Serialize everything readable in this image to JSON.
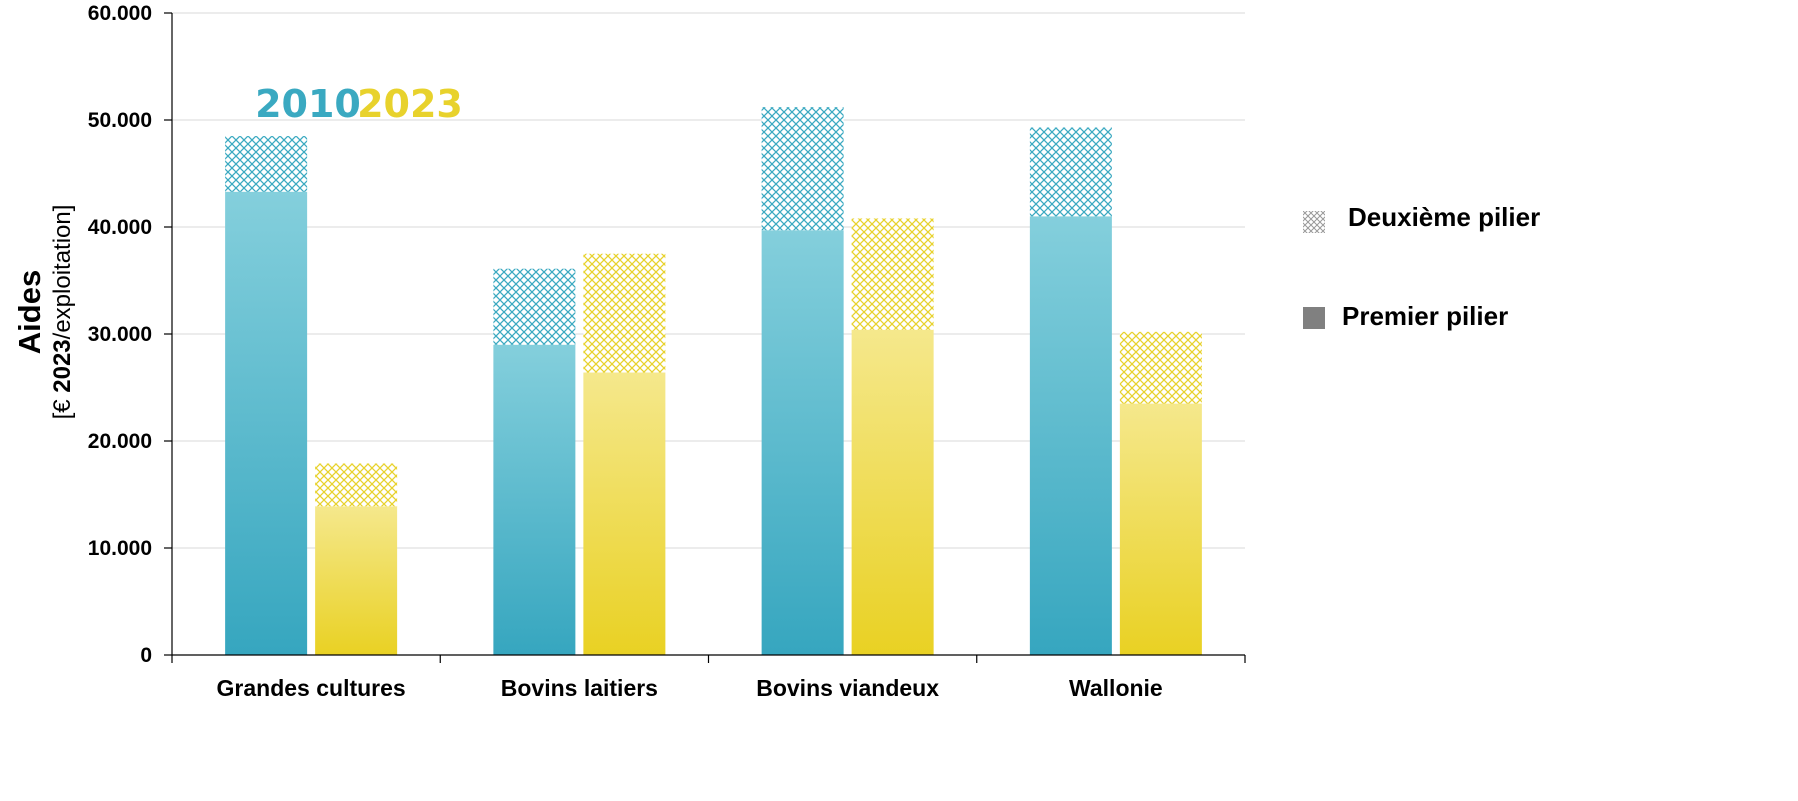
{
  "chart_data": {
    "type": "bar",
    "stacked": true,
    "categories": [
      "Grandes cultures",
      "Bovins laitiers",
      "Bovins viandeux",
      "Wallonie"
    ],
    "groups": [
      {
        "name": "2010",
        "color": "#3aa9c1",
        "premier_pilier": [
          43300,
          29000,
          39700,
          41000
        ],
        "deuxieme_pilier": [
          5200,
          7100,
          11500,
          8300
        ]
      },
      {
        "name": "2023",
        "color": "#e8d22c",
        "premier_pilier": [
          13900,
          26400,
          30400,
          23500
        ],
        "deuxieme_pilier": [
          4000,
          11100,
          10400,
          6700
        ]
      }
    ],
    "stack_names": {
      "top": "Deuxième pilier",
      "bottom": "Premier pilier"
    },
    "y_ticks": [
      "0",
      "10.000",
      "20.000",
      "30.000",
      "40.000",
      "50.000",
      "60.000"
    ],
    "ylim": [
      0,
      60000
    ],
    "ylabel_main": "Aides",
    "ylabel_unit_prefix": "[€ ",
    "ylabel_unit_bold": "2023",
    "ylabel_unit_suffix": "/exploitation]",
    "grid": true,
    "legend_position": "right",
    "legend_marker_color": "#808080"
  }
}
